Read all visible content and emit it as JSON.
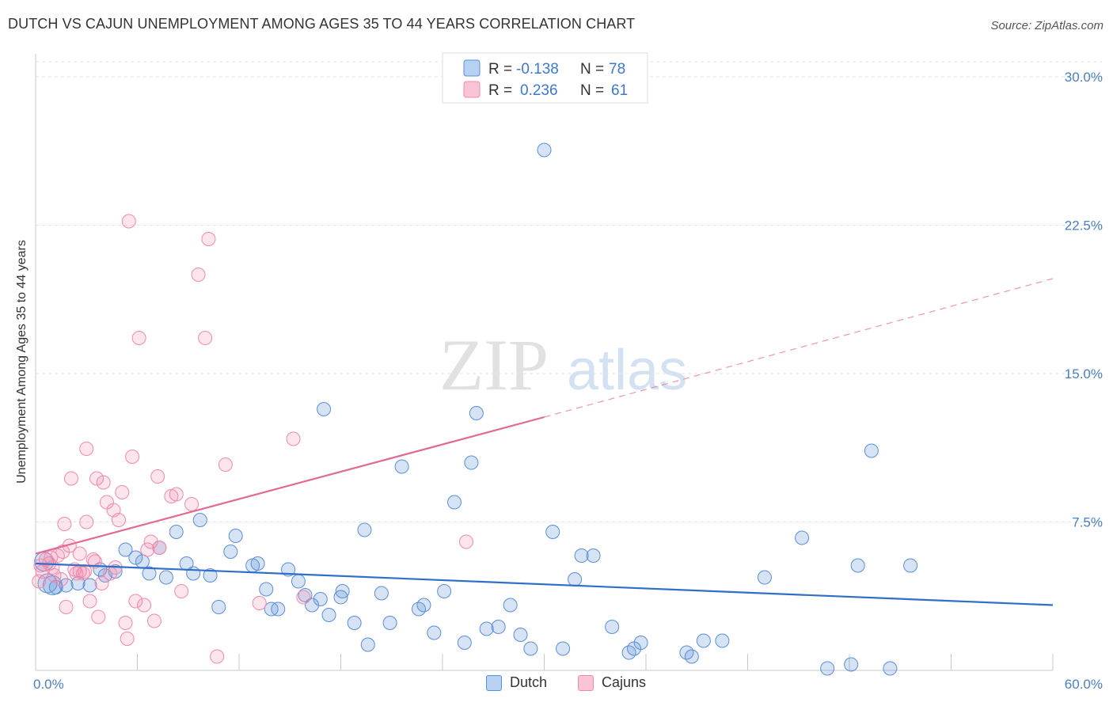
{
  "title": "DUTCH VS CAJUN UNEMPLOYMENT AMONG AGES 35 TO 44 YEARS CORRELATION CHART",
  "source": "Source: ZipAtlas.com",
  "watermark": {
    "zip": "ZIP",
    "atlas": "atlas"
  },
  "legend": {
    "rows": [
      {
        "r_label": "R =",
        "r_value": "-0.138",
        "n_label": "N =",
        "n_value": "78"
      },
      {
        "r_label": "R =",
        "r_value": "0.236",
        "n_label": "N =",
        "n_value": "61"
      }
    ]
  },
  "bottom_legend": [
    "Dutch",
    "Cajuns"
  ],
  "chart_data": {
    "type": "scatter",
    "title": "DUTCH VS CAJUN UNEMPLOYMENT AMONG AGES 35 TO 44 YEARS CORRELATION CHART",
    "xlabel": "",
    "ylabel": "Unemployment Among Ages 35 to 44 years",
    "xlim": [
      0,
      60
    ],
    "ylim": [
      0,
      30
    ],
    "x_tick_labels": [
      {
        "value": 0,
        "label": "0.0%"
      },
      {
        "value": 60,
        "label": "60.0%"
      }
    ],
    "y_tick_labels": [
      {
        "value": 7.5,
        "label": "7.5%"
      },
      {
        "value": 15,
        "label": "15.0%"
      },
      {
        "value": 22.5,
        "label": "22.5%"
      },
      {
        "value": 30,
        "label": "30.0%"
      }
    ],
    "grid": true,
    "legend_position": "top-center",
    "colors": {
      "dutch": "#5b8fd6",
      "dutch_line": "#2f6fc8",
      "cajuns": "#f08aab",
      "cajuns_line": "#e06a93",
      "tick_text": "#4a7fc1"
    },
    "series": [
      {
        "name": "Dutch",
        "r": -0.138,
        "n": 78,
        "trend": {
          "x": [
            0,
            60
          ],
          "y": [
            5.4,
            3.3
          ],
          "style": "solid"
        },
        "points": [
          [
            0.5,
            5.5
          ],
          [
            0.7,
            4.4
          ],
          [
            1.0,
            4.3
          ],
          [
            1.2,
            4.2
          ],
          [
            1.8,
            4.3
          ],
          [
            2.5,
            4.4
          ],
          [
            3.2,
            4.3
          ],
          [
            3.8,
            5.1
          ],
          [
            4.1,
            4.8
          ],
          [
            4.7,
            5.0
          ],
          [
            5.3,
            6.1
          ],
          [
            5.9,
            5.7
          ],
          [
            6.3,
            5.5
          ],
          [
            6.7,
            4.9
          ],
          [
            7.3,
            6.2
          ],
          [
            7.7,
            4.7
          ],
          [
            8.3,
            7.0
          ],
          [
            8.9,
            5.4
          ],
          [
            9.3,
            4.9
          ],
          [
            9.7,
            7.6
          ],
          [
            10.3,
            4.8
          ],
          [
            10.8,
            3.2
          ],
          [
            11.5,
            6.0
          ],
          [
            11.8,
            6.8
          ],
          [
            12.8,
            5.3
          ],
          [
            13.1,
            5.4
          ],
          [
            13.6,
            4.1
          ],
          [
            13.9,
            3.1
          ],
          [
            14.3,
            3.1
          ],
          [
            14.9,
            5.1
          ],
          [
            15.5,
            4.5
          ],
          [
            15.9,
            3.8
          ],
          [
            16.3,
            3.3
          ],
          [
            16.8,
            3.6
          ],
          [
            17.0,
            13.2
          ],
          [
            17.3,
            2.8
          ],
          [
            18.1,
            4.0
          ],
          [
            18.0,
            3.7
          ],
          [
            18.8,
            2.4
          ],
          [
            19.4,
            7.1
          ],
          [
            19.6,
            1.3
          ],
          [
            20.4,
            3.9
          ],
          [
            20.9,
            2.4
          ],
          [
            21.6,
            10.3
          ],
          [
            22.6,
            3.1
          ],
          [
            22.9,
            3.3
          ],
          [
            23.5,
            1.9
          ],
          [
            24.1,
            4.0
          ],
          [
            24.7,
            8.5
          ],
          [
            25.3,
            1.4
          ],
          [
            25.7,
            10.5
          ],
          [
            26.0,
            13.0
          ],
          [
            26.6,
            2.1
          ],
          [
            27.3,
            2.2
          ],
          [
            28.0,
            3.3
          ],
          [
            28.6,
            1.8
          ],
          [
            29.2,
            1.1
          ],
          [
            30.0,
            26.3
          ],
          [
            30.5,
            7.0
          ],
          [
            31.1,
            1.1
          ],
          [
            31.8,
            4.6
          ],
          [
            32.2,
            5.8
          ],
          [
            32.9,
            5.8
          ],
          [
            34.0,
            2.2
          ],
          [
            35.0,
            0.9
          ],
          [
            35.3,
            1.1
          ],
          [
            35.7,
            1.4
          ],
          [
            38.4,
            0.9
          ],
          [
            38.7,
            0.7
          ],
          [
            39.4,
            1.5
          ],
          [
            40.5,
            1.5
          ],
          [
            43.0,
            4.7
          ],
          [
            45.2,
            6.7
          ],
          [
            46.7,
            0.1
          ],
          [
            48.1,
            0.3
          ],
          [
            48.5,
            5.3
          ],
          [
            49.3,
            11.1
          ],
          [
            50.4,
            0.1
          ],
          [
            51.6,
            5.3
          ]
        ]
      },
      {
        "name": "Cajuns",
        "r": 0.236,
        "n": 61,
        "trend": {
          "x": [
            0,
            30
          ],
          "y": [
            5.9,
            12.8
          ],
          "style": "solid",
          "extended_x": [
            30,
            60
          ],
          "extended_y": [
            12.8,
            19.8
          ],
          "extended_style": "dashed"
        },
        "points": [
          [
            0.2,
            4.5
          ],
          [
            0.4,
            5.0
          ],
          [
            0.6,
            5.6
          ],
          [
            0.8,
            5.4
          ],
          [
            1.0,
            5.2
          ],
          [
            1.1,
            4.8
          ],
          [
            1.3,
            5.8
          ],
          [
            1.6,
            6.0
          ],
          [
            1.8,
            3.2
          ],
          [
            1.7,
            7.4
          ],
          [
            2.0,
            6.3
          ],
          [
            2.1,
            9.7
          ],
          [
            2.4,
            4.9
          ],
          [
            2.6,
            5.0
          ],
          [
            2.6,
            5.9
          ],
          [
            2.8,
            4.9
          ],
          [
            2.9,
            5.0
          ],
          [
            3.0,
            7.5
          ],
          [
            3.0,
            11.2
          ],
          [
            3.2,
            3.5
          ],
          [
            3.4,
            5.6
          ],
          [
            3.5,
            5.5
          ],
          [
            3.7,
            2.7
          ],
          [
            3.6,
            9.7
          ],
          [
            3.9,
            4.4
          ],
          [
            4.0,
            9.5
          ],
          [
            4.2,
            8.5
          ],
          [
            4.6,
            8.1
          ],
          [
            4.7,
            5.2
          ],
          [
            4.9,
            7.6
          ],
          [
            5.1,
            9.0
          ],
          [
            5.3,
            2.4
          ],
          [
            5.4,
            1.6
          ],
          [
            5.5,
            22.7
          ],
          [
            5.7,
            10.8
          ],
          [
            5.9,
            3.5
          ],
          [
            6.1,
            16.8
          ],
          [
            6.4,
            3.3
          ],
          [
            6.8,
            6.5
          ],
          [
            7.0,
            2.5
          ],
          [
            7.2,
            9.8
          ],
          [
            7.3,
            6.2
          ],
          [
            8.0,
            8.8
          ],
          [
            8.3,
            8.9
          ],
          [
            8.6,
            4.0
          ],
          [
            9.2,
            8.4
          ],
          [
            9.6,
            20.0
          ],
          [
            10.0,
            16.8
          ],
          [
            10.2,
            21.8
          ],
          [
            10.7,
            0.7
          ],
          [
            11.2,
            10.4
          ],
          [
            13.2,
            3.4
          ],
          [
            15.2,
            11.7
          ],
          [
            15.8,
            3.7
          ],
          [
            25.4,
            6.5
          ],
          [
            0.3,
            5.3
          ],
          [
            0.9,
            5.7
          ],
          [
            1.5,
            4.6
          ],
          [
            2.3,
            5.1
          ],
          [
            4.4,
            4.9
          ],
          [
            6.6,
            6.1
          ]
        ]
      }
    ]
  }
}
